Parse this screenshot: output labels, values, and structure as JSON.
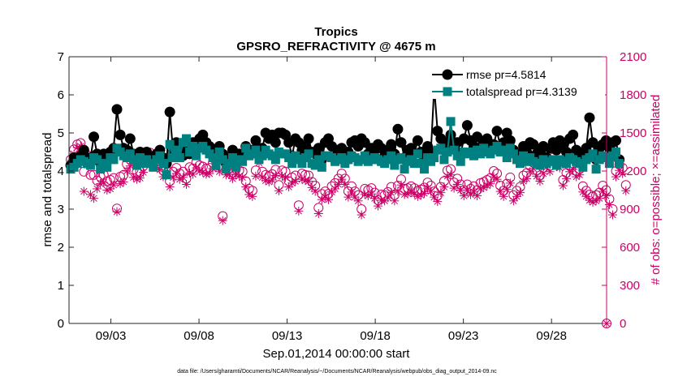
{
  "chart_data": {
    "type": "line",
    "title": "Tropics",
    "subtitle": "GPSRO_REFRACTIVITY @ 4675 m",
    "xlabel": "Sep.01,2014 00:00:00 start",
    "ylabel": "rmse and totalspread",
    "ylabel_right": "# of obs: o=possible; ×=assimilated",
    "footnote": "data file: /Users/gharamti/Documents/NCAR/Reanalysis/~/Documents/NCAR/Reanalysis/webpub/obs_diag_output_2014-09.nc",
    "x_ticks": [
      "09/03",
      "09/08",
      "09/13",
      "09/18",
      "09/23",
      "09/28"
    ],
    "x_tick_days": [
      3,
      8,
      13,
      18,
      23,
      28
    ],
    "xlim": [
      0.625,
      31.125
    ],
    "ylim": [
      0,
      7
    ],
    "y_ticks": [
      "0",
      "1",
      "2",
      "3",
      "4",
      "5",
      "6",
      "7"
    ],
    "ylim_right": [
      0,
      2100
    ],
    "y_ticks_right": [
      "0",
      "300",
      "600",
      "900",
      "1200",
      "1500",
      "1800",
      "2100"
    ],
    "legend_position": "top-right",
    "colors": {
      "rmse": "#000000",
      "spread": "#008080",
      "obs": "#cc0066",
      "axis": "#262626"
    },
    "series": [
      {
        "name": "rmse",
        "legend": "rmse pr=4.5814",
        "values": [
          4.15,
          4.35,
          4.25,
          4.4,
          4.55,
          4.3,
          4.35,
          4.9,
          4.45,
          4.2,
          4.45,
          4.35,
          4.5,
          4.6,
          5.62,
          4.95,
          4.6,
          4.55,
          4.85,
          4.45,
          4.35,
          4.5,
          4.35,
          4.5,
          4.35,
          4.25,
          4.45,
          4.55,
          4.35,
          4.2,
          5.55,
          4.5,
          4.75,
          4.5,
          4.4,
          4.65,
          4.45,
          4.75,
          4.55,
          4.85,
          4.95,
          4.75,
          4.65,
          4.5,
          4.3,
          4.65,
          4.45,
          4.2,
          4.35,
          4.55,
          4.25,
          4.45,
          4.35,
          4.65,
          4.45,
          4.55,
          4.8,
          4.45,
          4.6,
          5.0,
          4.85,
          4.95,
          4.75,
          5.0,
          5.0,
          4.95,
          4.75,
          4.4,
          4.85,
          4.75,
          4.55,
          4.65,
          4.85,
          4.5,
          4.45,
          4.6,
          4.3,
          4.75,
          4.85,
          4.65,
          4.45,
          4.55,
          4.6,
          4.25,
          4.5,
          4.75,
          4.8,
          4.65,
          4.85,
          4.75,
          4.45,
          4.6,
          4.55,
          4.7,
          4.6,
          4.4,
          4.55,
          4.7,
          4.45,
          5.1,
          4.75,
          4.35,
          4.55,
          4.6,
          4.45,
          4.8,
          4.5,
          4.35,
          4.65,
          4.5,
          6.2,
          5.05,
          4.85,
          4.55,
          4.75,
          4.95,
          4.6,
          4.75,
          4.45,
          4.85,
          5.2,
          4.8,
          4.65,
          4.9,
          4.6,
          4.75,
          4.85,
          4.65,
          4.7,
          5.05,
          4.65,
          4.75,
          5.0,
          4.8,
          4.55,
          4.45,
          4.3,
          4.65,
          4.5,
          4.75,
          4.7,
          4.45,
          4.55,
          4.65,
          4.35,
          4.6,
          4.75,
          4.55,
          4.8,
          4.65,
          4.5,
          4.85,
          4.95,
          4.55,
          4.45,
          4.3,
          4.6,
          5.4,
          4.75,
          4.3,
          4.6,
          4.7,
          4.8,
          4.6,
          4.75,
          4.8,
          4.3
        ]
      },
      {
        "name": "totalspread",
        "legend": "totalspread pr=4.3139",
        "values": [
          4.05,
          4.1,
          4.2,
          4.3,
          4.25,
          4.2,
          4.15,
          4.35,
          4.3,
          4.05,
          4.2,
          4.1,
          4.35,
          4.3,
          4.6,
          4.5,
          4.4,
          4.35,
          4.45,
          4.3,
          4.15,
          4.35,
          4.2,
          4.3,
          4.2,
          4.1,
          4.3,
          4.4,
          4.2,
          3.9,
          4.7,
          4.35,
          4.55,
          4.35,
          4.75,
          4.85,
          4.5,
          4.65,
          4.4,
          4.6,
          4.65,
          4.55,
          4.45,
          4.35,
          4.15,
          4.5,
          4.3,
          4.05,
          4.2,
          4.35,
          4.1,
          4.3,
          4.25,
          4.6,
          4.4,
          4.45,
          4.55,
          4.3,
          4.4,
          4.55,
          4.45,
          4.4,
          4.3,
          4.5,
          4.45,
          4.45,
          4.35,
          4.2,
          4.4,
          4.3,
          4.2,
          4.35,
          4.45,
          4.2,
          4.15,
          4.3,
          4.1,
          4.4,
          4.4,
          4.35,
          4.25,
          4.3,
          4.35,
          4.2,
          4.3,
          4.4,
          4.35,
          4.25,
          4.3,
          4.4,
          4.25,
          4.3,
          4.35,
          4.3,
          4.25,
          4.2,
          4.3,
          4.4,
          4.15,
          4.3,
          4.35,
          4.05,
          4.25,
          4.3,
          4.2,
          4.45,
          4.2,
          4.05,
          4.35,
          4.25,
          4.35,
          4.55,
          4.6,
          4.3,
          4.5,
          5.3,
          4.55,
          4.4,
          4.25,
          4.5,
          4.45,
          4.5,
          4.4,
          4.55,
          4.45,
          4.6,
          4.5,
          4.45,
          4.55,
          4.65,
          4.5,
          4.55,
          4.35,
          4.6,
          4.45,
          4.3,
          4.2,
          4.4,
          4.25,
          4.35,
          4.25,
          4.2,
          4.15,
          4.3,
          4.2,
          4.25,
          4.3,
          4.15,
          4.3,
          4.25,
          4.2,
          4.35,
          4.3,
          4.25,
          4.2,
          4.1,
          4.3,
          4.35,
          4.45,
          4.05,
          4.3,
          4.4,
          4.35,
          4.2,
          4.4,
          4.5,
          4.2
        ]
      },
      {
        "name": "possible",
        "values": [
          1290,
          1370,
          1410,
          1420,
          1195,
          1325,
          1170,
          1170,
          1125,
          1155,
          1170,
          1120,
          1130,
          1145,
          905,
          1155,
          1170,
          1255,
          1290,
          1210,
          1190,
          1195,
          1240,
          1330,
          1345,
          1310,
          1280,
          1260,
          1205,
          1215,
          1120,
          1195,
          1225,
          1180,
          1195,
          1140,
          1230,
          1220,
          1270,
          1245,
          1235,
          1220,
          1225,
          1265,
          1275,
          1240,
          845,
          1215,
          1220,
          1185,
          1215,
          1205,
          1195,
          1120,
          1060,
          1045,
          1205,
          1310,
          1195,
          1170,
          1160,
          1175,
          1210,
          1090,
          1205,
          1195,
          1120,
          1150,
          1165,
          930,
          1180,
          1170,
          1165,
          1115,
          1085,
          910,
          1020,
          1040,
          1020,
          1080,
          1105,
          1140,
          1180,
          1140,
          1040,
          1080,
          1040,
          1010,
          900,
          1060,
          1050,
          1065,
          1030,
          970,
          1015,
          1010,
          1035,
          1075,
          1010,
          1085,
          1135,
          1060,
          1065,
          1080,
          1065,
          1045,
          1055,
          1070,
          1110,
          1085,
          1040,
          1005,
          1075,
          1120,
          1205,
          1215,
          1110,
          1140,
          1095,
          1050,
          1095,
          1060,
          1080,
          1050,
          1105,
          1115,
          1130,
          1145,
          1200,
          1180,
          1085,
          1045,
          1100,
          1150,
          1010,
          1045,
          1075,
          1165,
          1185,
          1240,
          1265,
          1205,
          1165,
          1225,
          1275,
          1240,
          1305,
          1280,
          1270,
          1130,
          1185,
          1240,
          1260,
          1200,
          1215,
          1080,
          1045,
          1015,
          1000,
          1010,
          1030,
          1085,
          1050,
          980,
          900,
          1200,
          1250,
          1225,
          1090
        ]
      },
      {
        "name": "assimilated",
        "values": [
          1265,
          1335,
          1385,
          1395,
          1040,
          1245,
          1015,
          985,
          1060,
          1100,
          1110,
          1050,
          1060,
          1090,
          880,
          1100,
          1115,
          1200,
          1240,
          1150,
          1135,
          1145,
          1190,
          1280,
          1295,
          1260,
          1230,
          1210,
          1155,
          1170,
          1075,
          1150,
          1180,
          1135,
          1150,
          1095,
          1185,
          1175,
          1225,
          1200,
          1190,
          1175,
          1180,
          1220,
          1230,
          1195,
          810,
          1170,
          1175,
          1140,
          1170,
          1160,
          1150,
          1075,
          1015,
          1000,
          1160,
          1265,
          1150,
          1125,
          1115,
          1130,
          1165,
          1045,
          1160,
          1150,
          1075,
          1105,
          1120,
          885,
          1135,
          1125,
          1120,
          1070,
          1040,
          865,
          975,
          995,
          975,
          1035,
          1060,
          1095,
          1135,
          1095,
          995,
          1035,
          995,
          965,
          855,
          1015,
          1005,
          1020,
          985,
          925,
          970,
          965,
          990,
          1030,
          965,
          1040,
          1090,
          1015,
          1020,
          1035,
          1020,
          1000,
          1010,
          1025,
          1065,
          1040,
          995,
          960,
          1030,
          1075,
          1160,
          1170,
          1065,
          1095,
          1050,
          1005,
          1050,
          1015,
          1035,
          1005,
          1060,
          1070,
          1085,
          1100,
          1155,
          1135,
          1040,
          1000,
          1055,
          1105,
          965,
          1000,
          1030,
          1120,
          1140,
          1195,
          1220,
          1160,
          1120,
          1180,
          1230,
          1195,
          1260,
          1235,
          1225,
          1085,
          1140,
          1195,
          1215,
          1155,
          1170,
          1035,
          1000,
          970,
          955,
          965,
          985,
          1040,
          1005,
          935,
          855,
          1155,
          1205,
          1180,
          1045
        ]
      }
    ]
  }
}
